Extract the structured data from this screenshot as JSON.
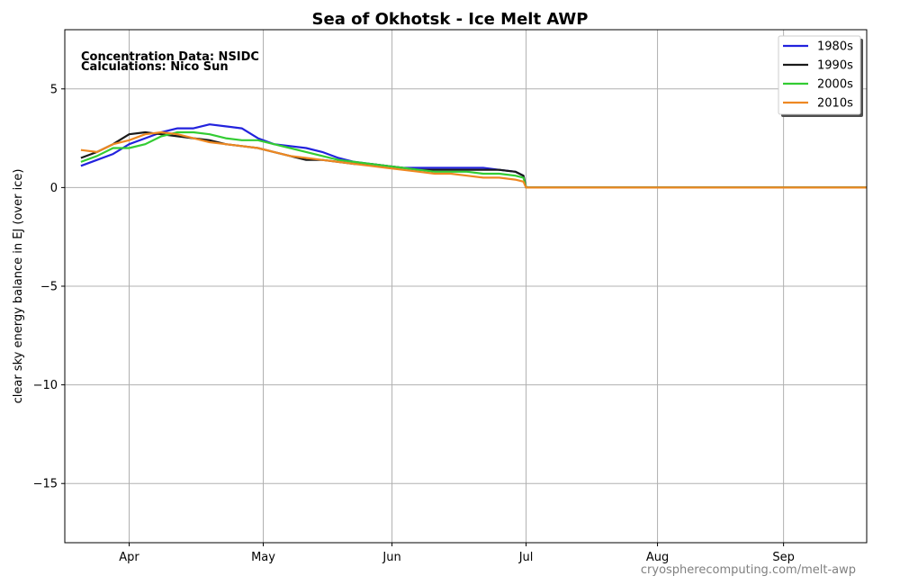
{
  "chart_data": {
    "type": "line",
    "title": "Sea of Okhotsk - Ice Melt AWP",
    "xlabel": "",
    "ylabel": "clear sky energy balance in EJ (over ice)",
    "ylim": [
      -18,
      8
    ],
    "xlim": [
      -24,
      275
    ],
    "grid": true,
    "legend_position": "top-right",
    "yticks": [
      5,
      0,
      -5,
      -10,
      -15
    ],
    "ytick_labels": [
      "5",
      "0",
      "−5",
      "−10",
      "−15"
    ],
    "xticks": [
      0,
      50,
      98,
      148,
      197,
      244
    ],
    "xtick_labels": [
      "Apr",
      "May",
      "Jun",
      "Jul",
      "Aug",
      "Sep"
    ],
    "annotations": [
      "Concentration Data: NSIDC",
      "Calculations: Nico Sun"
    ],
    "credit": "cryospherecomputing.com/melt-awp",
    "series": [
      {
        "name": "1980s",
        "color": "#2222dd",
        "x": [
          -18,
          -12,
          -6,
          0,
          6,
          12,
          18,
          24,
          30,
          36,
          42,
          48,
          54,
          60,
          66,
          72,
          78,
          84,
          90,
          96,
          102,
          108,
          114,
          120,
          126,
          132,
          138,
          144,
          147,
          148,
          275
        ],
        "y": [
          1.1,
          1.4,
          1.7,
          2.2,
          2.5,
          2.8,
          3.0,
          3.0,
          3.2,
          3.1,
          3.0,
          2.5,
          2.2,
          2.1,
          2.0,
          1.8,
          1.5,
          1.3,
          1.2,
          1.1,
          1.0,
          1.0,
          1.0,
          1.0,
          1.0,
          1.0,
          0.9,
          0.8,
          0.6,
          0.0,
          0.0
        ]
      },
      {
        "name": "1990s",
        "color": "#1a1a1a",
        "x": [
          -18,
          -12,
          -6,
          0,
          6,
          12,
          18,
          24,
          30,
          36,
          42,
          48,
          54,
          60,
          66,
          72,
          78,
          84,
          90,
          96,
          102,
          108,
          114,
          120,
          126,
          132,
          138,
          144,
          147,
          148,
          275
        ],
        "y": [
          1.5,
          1.8,
          2.2,
          2.7,
          2.8,
          2.7,
          2.6,
          2.5,
          2.4,
          2.2,
          2.1,
          2.0,
          1.8,
          1.6,
          1.4,
          1.4,
          1.3,
          1.2,
          1.2,
          1.1,
          1.0,
          0.9,
          0.9,
          0.9,
          0.9,
          0.9,
          0.9,
          0.8,
          0.6,
          0.0,
          0.0
        ]
      },
      {
        "name": "2000s",
        "color": "#33cc33",
        "x": [
          -18,
          -12,
          -6,
          0,
          6,
          12,
          18,
          24,
          30,
          36,
          42,
          48,
          54,
          60,
          66,
          72,
          78,
          84,
          90,
          96,
          102,
          108,
          114,
          120,
          126,
          132,
          138,
          144,
          147,
          148,
          275
        ],
        "y": [
          1.3,
          1.6,
          2.0,
          2.0,
          2.2,
          2.6,
          2.8,
          2.8,
          2.7,
          2.5,
          2.4,
          2.4,
          2.2,
          2.0,
          1.8,
          1.6,
          1.4,
          1.3,
          1.2,
          1.1,
          1.0,
          0.9,
          0.8,
          0.8,
          0.8,
          0.7,
          0.7,
          0.6,
          0.5,
          0.0,
          0.0
        ]
      },
      {
        "name": "2010s",
        "color": "#ee8822",
        "x": [
          -18,
          -12,
          -6,
          0,
          6,
          12,
          18,
          24,
          30,
          36,
          42,
          48,
          54,
          60,
          66,
          72,
          78,
          84,
          90,
          96,
          102,
          108,
          114,
          120,
          126,
          132,
          138,
          144,
          147,
          148,
          275
        ],
        "y": [
          1.9,
          1.8,
          2.2,
          2.4,
          2.7,
          2.8,
          2.7,
          2.5,
          2.3,
          2.2,
          2.1,
          2.0,
          1.8,
          1.6,
          1.5,
          1.4,
          1.3,
          1.2,
          1.1,
          1.0,
          0.9,
          0.8,
          0.7,
          0.7,
          0.6,
          0.5,
          0.5,
          0.4,
          0.3,
          0.0,
          0.0
        ]
      }
    ]
  }
}
